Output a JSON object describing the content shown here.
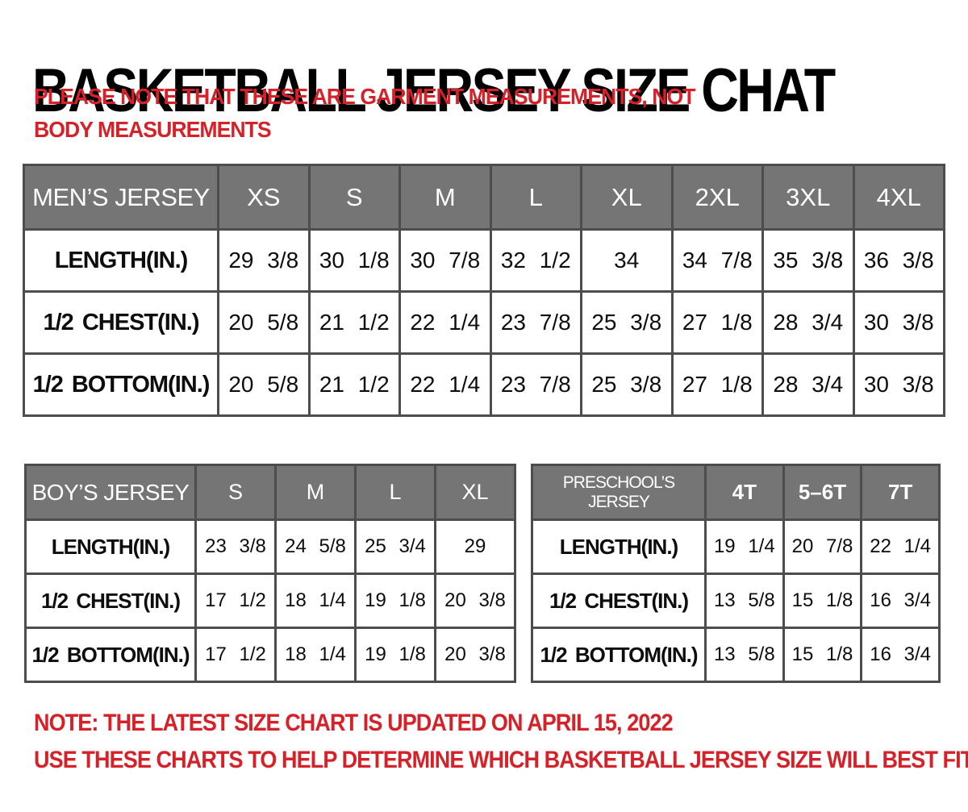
{
  "page": {
    "title": "BASKETBALL JERSEY SIZE CHAT",
    "disclaimer": "PLEASE NOTE THAT THESE ARE GARMENT MEASUREMENTS, NOT BODY MEASUREMENTS",
    "footer_note_1": "NOTE: THE LATEST SIZE CHART IS UPDATED ON APRIL 15, 2022",
    "footer_note_2": "USE THESE CHARTS TO HELP DETERMINE WHICH  BASKETBALL JERSEY  SIZE WILL BEST FIT YOU."
  },
  "colors": {
    "accent_red": "#d62128",
    "header_gray": "#757575",
    "border_gray": "#4d4d4d"
  },
  "tables": {
    "mens": {
      "title": "MEN’S JERSEY",
      "sizes": [
        "XS",
        "S",
        "M",
        "L",
        "XL",
        "2XL",
        "3XL",
        "4XL"
      ],
      "rows": [
        {
          "label": "LENGTH(IN.)",
          "values": [
            "29 3/8",
            "30 1/8",
            "30 7/8",
            "32 1/2",
            "34",
            "34 7/8",
            "35 3/8",
            "36 3/8"
          ]
        },
        {
          "label": "1/2 CHEST(IN.)",
          "values": [
            "20 5/8",
            "21 1/2",
            "22 1/4",
            "23 7/8",
            "25 3/8",
            "27 1/8",
            "28 3/4",
            "30 3/8"
          ]
        },
        {
          "label": "1/2 BOTTOM(IN.)",
          "values": [
            "20 5/8",
            "21 1/2",
            "22 1/4",
            "23 7/8",
            "25 3/8",
            "27 1/8",
            "28 3/4",
            "30 3/8"
          ]
        }
      ]
    },
    "boys": {
      "title": "BOY’S JERSEY",
      "sizes": [
        "S",
        "M",
        "L",
        "XL"
      ],
      "rows": [
        {
          "label": "LENGTH(IN.)",
          "values": [
            "23 3/8",
            "24 5/8",
            "25 3/4",
            "29"
          ]
        },
        {
          "label": "1/2 CHEST(IN.)",
          "values": [
            "17 1/2",
            "18 1/4",
            "19 1/8",
            "20 3/8"
          ]
        },
        {
          "label": "1/2 BOTTOM(IN.)",
          "values": [
            "17 1/2",
            "18 1/4",
            "19 1/8",
            "20 3/8"
          ]
        }
      ]
    },
    "preschool": {
      "title": "PRESCHOOL’S JERSEY",
      "sizes": [
        "4T",
        "5–6T",
        "7T"
      ],
      "rows": [
        {
          "label": "LENGTH(IN.)",
          "values": [
            "19 1/4",
            "20 7/8",
            "22 1/4"
          ]
        },
        {
          "label": "1/2 CHEST(IN.)",
          "values": [
            "13 5/8",
            "15 1/8",
            "16 3/4"
          ]
        },
        {
          "label": "1/2 BOTTOM(IN.)",
          "values": [
            "13 5/8",
            "15 1/8",
            "16 3/4"
          ]
        }
      ]
    }
  }
}
